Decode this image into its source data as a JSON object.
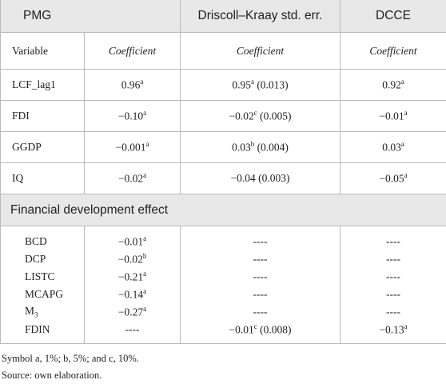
{
  "table": {
    "header": [
      "PMG",
      "Driscoll–Kraay std. err.",
      "DCCE"
    ],
    "subheader": [
      "Variable",
      "Coefficient",
      "Coefficient",
      "Coefficient"
    ],
    "rows": [
      [
        {
          "text": "LCF_lag1"
        },
        {
          "text": "0.96",
          "sup": "a"
        },
        {
          "text": "0.95",
          "sup": "a",
          "after": " (0.013)"
        },
        {
          "text": "0.92",
          "sup": "a"
        }
      ],
      [
        {
          "text": "FDI"
        },
        {
          "text": "−0.10",
          "sup": "a"
        },
        {
          "text": "−0.02",
          "sup": "c",
          "after": " (0.005)"
        },
        {
          "text": "−0.01",
          "sup": "a"
        }
      ],
      [
        {
          "text": "GGDP"
        },
        {
          "text": "−0.001",
          "sup": "a"
        },
        {
          "text": "0.03",
          "sup": "b",
          "after": " (0.004)"
        },
        {
          "text": "0.03",
          "sup": "a"
        }
      ],
      [
        {
          "text": "IQ"
        },
        {
          "text": "−0.02",
          "sup": "a"
        },
        {
          "text": "−0.04 (0.003)"
        },
        {
          "text": "−0.05",
          "sup": "a"
        }
      ]
    ],
    "section": "Financial development effect",
    "section_rows": [
      [
        {
          "text": "BCD"
        },
        {
          "text": "−0.01",
          "sup": "a"
        },
        {
          "text": "----"
        },
        {
          "text": "----"
        }
      ],
      [
        {
          "text": "DCP"
        },
        {
          "text": "−0.02",
          "sup": "b"
        },
        {
          "text": "----"
        },
        {
          "text": "----"
        }
      ],
      [
        {
          "text": "LISTC"
        },
        {
          "text": "−0.21",
          "sup": "a"
        },
        {
          "text": "----"
        },
        {
          "text": "----"
        }
      ],
      [
        {
          "text": "MCAPG"
        },
        {
          "text": "−0.14",
          "sup": "a"
        },
        {
          "text": "----"
        },
        {
          "text": "----"
        }
      ],
      [
        {
          "text": "M",
          "sub": "3"
        },
        {
          "text": "−0.27",
          "sup": "a"
        },
        {
          "text": "----"
        },
        {
          "text": "----"
        }
      ],
      [
        {
          "text": "FDIN"
        },
        {
          "text": "----"
        },
        {
          "text": "−0.01",
          "sup": "c",
          "after": " (0.008)"
        },
        {
          "text": "−0.13",
          "sup": "a"
        }
      ]
    ]
  },
  "notes": [
    "Symbol a, 1%; b, 5%; and c, 10%.",
    "Source: own elaboration."
  ]
}
